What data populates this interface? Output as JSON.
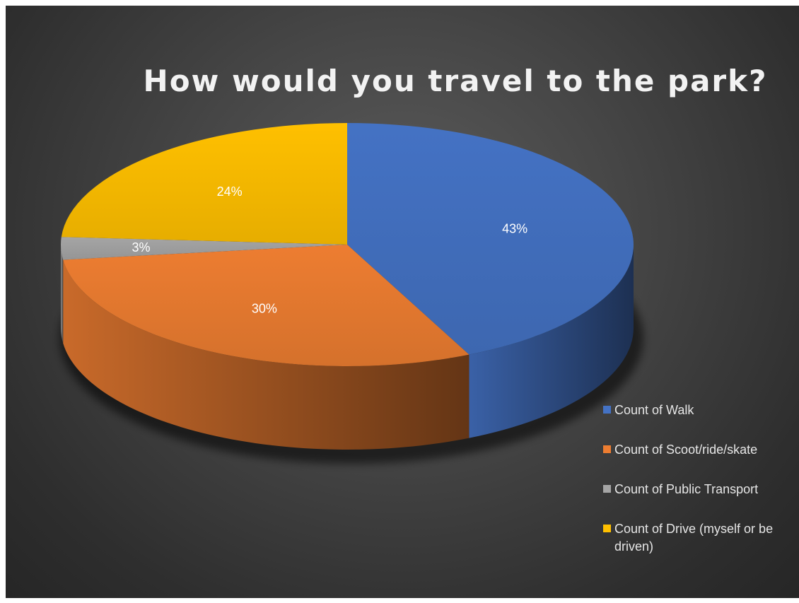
{
  "chart_data": {
    "type": "pie",
    "title": "How would you travel to the park?",
    "legend_position": "right",
    "series": [
      {
        "name": "",
        "slices": [
          {
            "label": "Count of Walk",
            "value": 43,
            "value_label": "43%",
            "color": "#4472c4"
          },
          {
            "label": "Count of Scoot/ride/skate",
            "value": 30,
            "value_label": "30%",
            "color": "#ed7d31"
          },
          {
            "label": "Count of Public Transport",
            "value": 3,
            "value_label": "3%",
            "color": "#a5a5a5"
          },
          {
            "label": "Count of Drive (myself or be driven)",
            "value": 24,
            "value_label": "24%",
            "color": "#ffc000"
          }
        ]
      }
    ]
  }
}
